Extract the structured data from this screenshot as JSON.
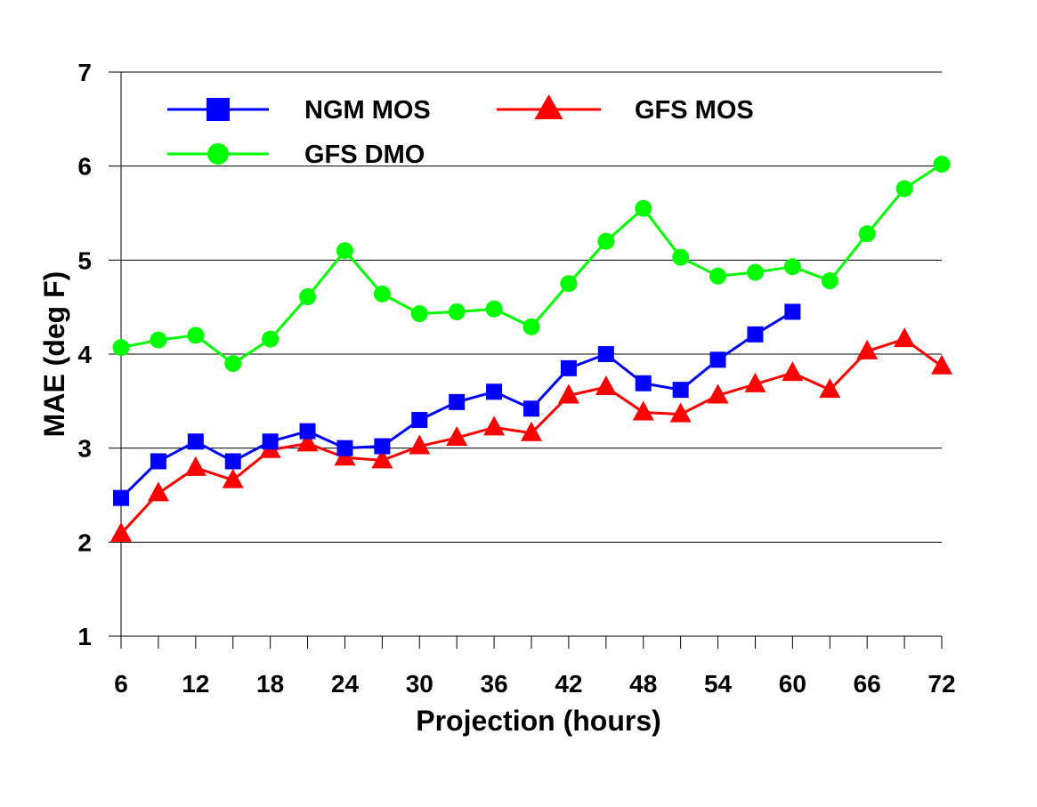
{
  "chart_data": {
    "type": "line",
    "title": "",
    "xlabel": "Projection (hours)",
    "ylabel": "MAE (deg F)",
    "x": [
      6,
      9,
      12,
      15,
      18,
      21,
      24,
      27,
      30,
      33,
      36,
      39,
      42,
      45,
      48,
      51,
      54,
      57,
      60,
      63,
      66,
      69,
      72
    ],
    "xlim": [
      6,
      72
    ],
    "ylim": [
      1,
      7
    ],
    "x_ticks": [
      "6",
      "12",
      "18",
      "24",
      "30",
      "36",
      "42",
      "48",
      "54",
      "60",
      "66",
      "72"
    ],
    "y_ticks": [
      "1",
      "2",
      "3",
      "4",
      "5",
      "6",
      "7"
    ],
    "grid": "horizontal",
    "legend_position": "top-left",
    "series": [
      {
        "name": "NGM MOS",
        "color": "#0000ff",
        "marker": "square",
        "values": [
          2.47,
          2.86,
          3.07,
          2.86,
          3.07,
          3.18,
          3.0,
          3.02,
          3.3,
          3.49,
          3.6,
          3.42,
          3.85,
          4.0,
          3.69,
          3.62,
          3.94,
          4.21,
          4.45,
          null,
          null,
          null,
          null
        ]
      },
      {
        "name": "GFS MOS",
        "color": "#ff0000",
        "marker": "triangle",
        "values": [
          2.09,
          2.52,
          2.79,
          2.66,
          2.98,
          3.05,
          2.9,
          2.87,
          3.02,
          3.11,
          3.22,
          3.16,
          3.56,
          3.65,
          3.38,
          3.36,
          3.56,
          3.68,
          3.8,
          3.62,
          4.03,
          4.16,
          3.87
        ]
      },
      {
        "name": "GFS DMO",
        "color": "#00ff00",
        "marker": "circle",
        "values": [
          4.07,
          4.15,
          4.2,
          3.9,
          4.16,
          4.61,
          5.1,
          4.64,
          4.43,
          4.45,
          4.48,
          4.29,
          4.75,
          5.2,
          5.55,
          5.03,
          4.83,
          4.87,
          4.93,
          4.78,
          5.28,
          5.76,
          6.02
        ]
      }
    ]
  }
}
